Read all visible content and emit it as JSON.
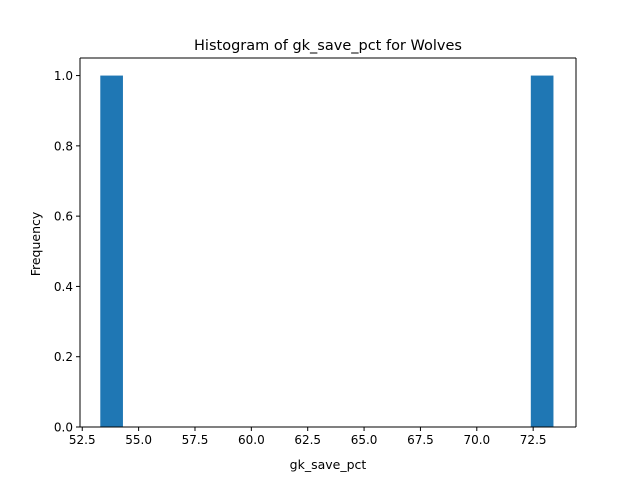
{
  "chart_data": {
    "type": "bar",
    "title": "Histogram of gk_save_pct for Wolves",
    "xlabel": "gk_save_pct",
    "ylabel": "Frequency",
    "xlim": [
      52.4,
      74.4
    ],
    "ylim": [
      0.0,
      1.05
    ],
    "bin_count": 20,
    "bin_range": [
      53.3,
      73.4
    ],
    "bins": [
      {
        "x0": 53.3,
        "x1": 54.305,
        "count": 1
      },
      {
        "x0": 72.395,
        "x1": 73.4,
        "count": 1
      }
    ],
    "xticks": [
      "52.5",
      "55.0",
      "57.5",
      "60.0",
      "62.5",
      "65.0",
      "67.5",
      "70.0",
      "72.5"
    ],
    "xtick_values": [
      52.5,
      55.0,
      57.5,
      60.0,
      62.5,
      65.0,
      67.5,
      70.0,
      72.5
    ],
    "yticks": [
      "0.0",
      "0.2",
      "0.4",
      "0.6",
      "0.8",
      "1.0"
    ],
    "ytick_values": [
      0.0,
      0.2,
      0.4,
      0.6,
      0.8,
      1.0
    ],
    "grid": false,
    "bar_color": "#1f77b4"
  }
}
